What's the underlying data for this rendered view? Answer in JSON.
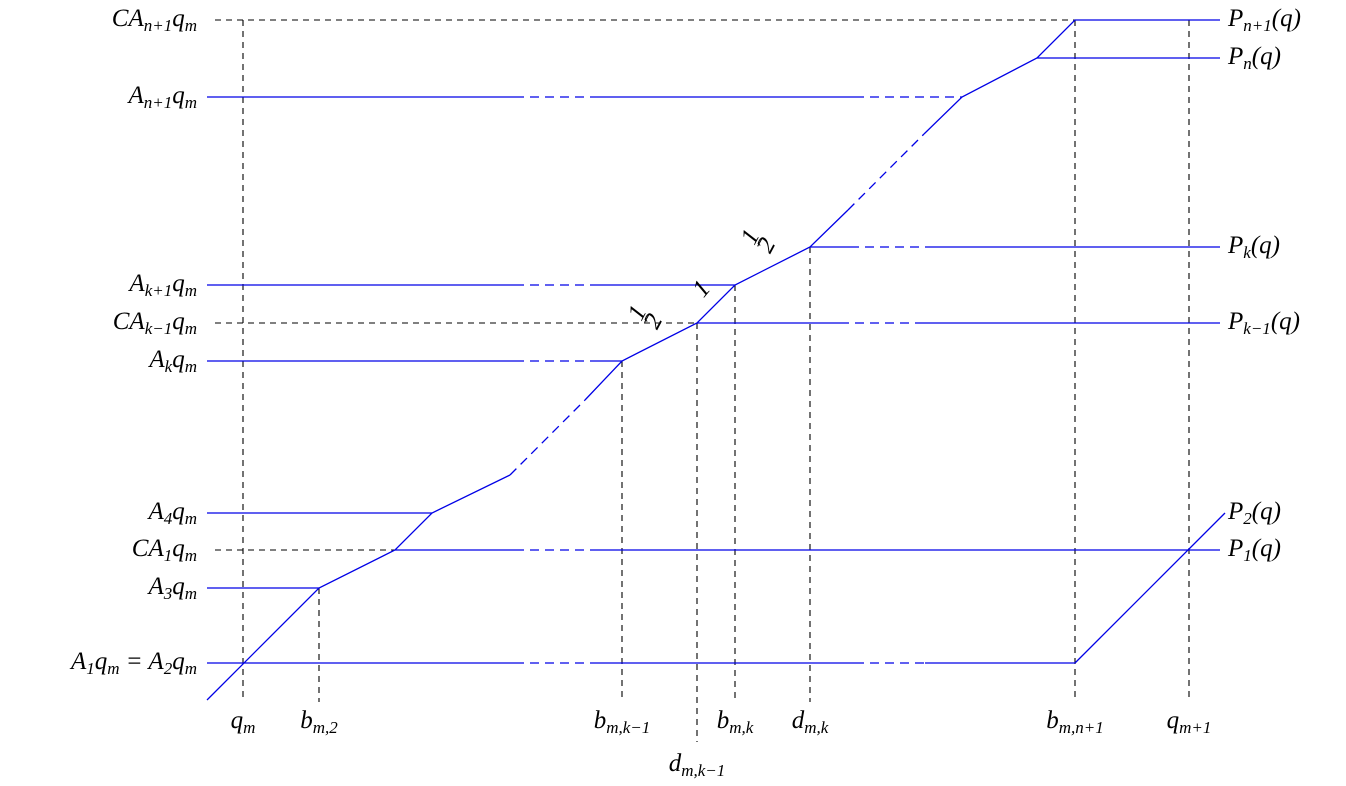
{
  "left_labels": [
    {
      "parts": [
        {
          "t": "CA",
          "s": "n+1"
        },
        {
          "t": "q",
          "s": "m"
        }
      ]
    },
    {
      "parts": [
        {
          "t": "A",
          "s": "n+1"
        },
        {
          "t": "q",
          "s": "m"
        }
      ]
    },
    {
      "parts": [
        {
          "t": "A",
          "s": "k+1"
        },
        {
          "t": "q",
          "s": "m"
        }
      ]
    },
    {
      "parts": [
        {
          "t": "CA",
          "s": "k−1"
        },
        {
          "t": "q",
          "s": "m"
        }
      ]
    },
    {
      "parts": [
        {
          "t": "A",
          "s": "k"
        },
        {
          "t": "q",
          "s": "m"
        }
      ]
    },
    {
      "parts": [
        {
          "t": "A",
          "s": "4"
        },
        {
          "t": "q",
          "s": "m"
        }
      ]
    },
    {
      "parts": [
        {
          "t": "CA",
          "s": "1"
        },
        {
          "t": "q",
          "s": "m"
        }
      ]
    },
    {
      "parts": [
        {
          "t": "A",
          "s": "3"
        },
        {
          "t": "q",
          "s": "m"
        }
      ]
    },
    {
      "parts": [
        {
          "t": "A",
          "s": "1"
        },
        {
          "t": "q",
          "s": "m"
        },
        {
          "t": " = A",
          "s": "2"
        },
        {
          "t": "q",
          "s": "m"
        }
      ]
    }
  ],
  "right_labels": [
    {
      "parts": [
        {
          "t": "P",
          "s": "n+1"
        },
        {
          "t": "(q)"
        }
      ]
    },
    {
      "parts": [
        {
          "t": "P",
          "s": "n"
        },
        {
          "t": "(q)"
        }
      ]
    },
    {
      "parts": [
        {
          "t": "P",
          "s": "k"
        },
        {
          "t": "(q)"
        }
      ]
    },
    {
      "parts": [
        {
          "t": "P",
          "s": "k−1"
        },
        {
          "t": "(q)"
        }
      ]
    },
    {
      "parts": [
        {
          "t": "P",
          "s": "2"
        },
        {
          "t": "(q)"
        }
      ]
    },
    {
      "parts": [
        {
          "t": "P",
          "s": "1"
        },
        {
          "t": "(q)"
        }
      ]
    }
  ],
  "bottom_labels": [
    {
      "parts": [
        {
          "t": "q",
          "s": "m"
        }
      ]
    },
    {
      "parts": [
        {
          "t": "b",
          "s": "m,2"
        }
      ]
    },
    {
      "parts": [
        {
          "t": "b",
          "s": "m,k−1"
        }
      ]
    },
    {
      "parts": [
        {
          "t": "d",
          "s": "m,k−1"
        }
      ]
    },
    {
      "parts": [
        {
          "t": "b",
          "s": "m,k"
        }
      ]
    },
    {
      "parts": [
        {
          "t": "d",
          "s": "m,k"
        }
      ]
    },
    {
      "parts": [
        {
          "t": "b",
          "s": "m,n+1"
        }
      ]
    },
    {
      "parts": [
        {
          "t": "q",
          "s": "m+1"
        }
      ]
    }
  ],
  "slope_labels": [
    {
      "num": "1",
      "den": "2"
    },
    {
      "text": "1"
    },
    {
      "num": "1",
      "den": "2"
    }
  ]
}
